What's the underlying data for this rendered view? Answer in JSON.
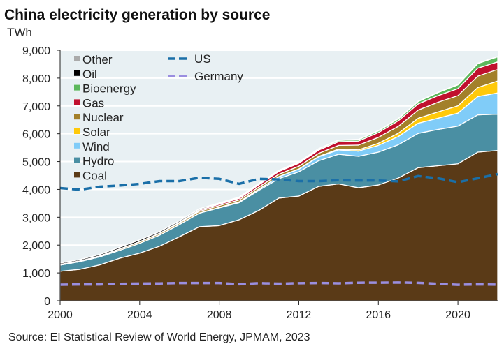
{
  "chart_data": {
    "type": "area",
    "title": "China electricity generation by source",
    "ylabel": "TWh",
    "xlabel": "",
    "source": "Source: EI Statistical Review of World Energy, JPMAM, 2023",
    "ylim": [
      0,
      9000
    ],
    "xlim": [
      2000,
      2022
    ],
    "yticks": [
      "0",
      "1,000",
      "2,000",
      "3,000",
      "4,000",
      "5,000",
      "6,000",
      "7,000",
      "8,000",
      "9,000"
    ],
    "xticks": [
      "2000",
      "2004",
      "2008",
      "2012",
      "2016",
      "2020"
    ],
    "x": [
      2000,
      2001,
      2002,
      2003,
      2004,
      2005,
      2006,
      2007,
      2008,
      2009,
      2010,
      2011,
      2012,
      2013,
      2014,
      2015,
      2016,
      2017,
      2018,
      2019,
      2020,
      2021,
      2022
    ],
    "series": [
      {
        "name": "Coal",
        "color": "#5a3a17",
        "values": [
          1060,
          1130,
          1290,
          1530,
          1710,
          1960,
          2300,
          2660,
          2700,
          2910,
          3250,
          3690,
          3760,
          4110,
          4200,
          4060,
          4160,
          4410,
          4780,
          4850,
          4920,
          5340,
          5400
        ]
      },
      {
        "name": "Hydro",
        "color": "#4a8fa3",
        "values": [
          222,
          277,
          288,
          283,
          353,
          397,
          436,
          485,
          637,
          616,
          722,
          699,
          872,
          920,
          1064,
          1130,
          1181,
          1194,
          1232,
          1304,
          1355,
          1340,
          1303
        ]
      },
      {
        "name": "Wind",
        "color": "#80ccf8",
        "values": [
          1,
          1,
          1,
          1,
          1,
          2,
          4,
          6,
          15,
          27,
          45,
          70,
          96,
          141,
          156,
          186,
          241,
          295,
          366,
          406,
          467,
          656,
          763
        ]
      },
      {
        "name": "Solar",
        "color": "#ffc90a",
        "values": [
          0,
          0,
          0,
          0,
          0,
          0,
          0,
          0,
          0,
          0,
          1,
          3,
          6,
          15,
          29,
          45,
          75,
          118,
          177,
          225,
          261,
          327,
          428
        ]
      },
      {
        "name": "Nuclear",
        "color": "#a3802a",
        "values": [
          17,
          17,
          25,
          43,
          50,
          53,
          55,
          62,
          68,
          70,
          74,
          86,
          98,
          112,
          133,
          171,
          213,
          248,
          295,
          348,
          366,
          408,
          418
        ]
      },
      {
        "name": "Gas",
        "color": "#c0102e",
        "values": [
          6,
          7,
          9,
          9,
          10,
          12,
          20,
          40,
          48,
          55,
          80,
          100,
          110,
          115,
          133,
          145,
          170,
          200,
          220,
          236,
          252,
          287,
          272
        ]
      },
      {
        "name": "Bioenergy",
        "color": "#5cb85c",
        "values": [
          2,
          2,
          2,
          2,
          2,
          4,
          8,
          10,
          12,
          15,
          25,
          30,
          35,
          40,
          45,
          50,
          60,
          70,
          85,
          110,
          136,
          165,
          180
        ]
      },
      {
        "name": "Oil",
        "color": "#000000",
        "values": [
          46,
          47,
          50,
          55,
          60,
          55,
          50,
          40,
          30,
          30,
          20,
          10,
          10,
          10,
          10,
          10,
          10,
          10,
          10,
          10,
          10,
          10,
          10
        ]
      },
      {
        "name": "Other",
        "color": "#aaaaaa",
        "values": [
          2,
          2,
          2,
          2,
          2,
          2,
          2,
          2,
          2,
          2,
          2,
          2,
          2,
          2,
          2,
          2,
          2,
          2,
          2,
          2,
          2,
          2,
          2
        ]
      }
    ],
    "lines": [
      {
        "name": "US",
        "color": "#1a6fa8",
        "values": [
          4050,
          3990,
          4100,
          4140,
          4200,
          4300,
          4300,
          4420,
          4380,
          4200,
          4380,
          4360,
          4300,
          4300,
          4330,
          4320,
          4320,
          4290,
          4480,
          4400,
          4260,
          4400,
          4550
        ]
      },
      {
        "name": "Germany",
        "color": "#9a8ee0",
        "values": [
          577,
          586,
          587,
          609,
          617,
          622,
          637,
          637,
          637,
          593,
          633,
          613,
          630,
          638,
          627,
          647,
          649,
          654,
          643,
          609,
          574,
          588,
          577
        ]
      }
    ],
    "legend_order": [
      "Other",
      "Oil",
      "Bioenergy",
      "Gas",
      "Nuclear",
      "Solar",
      "Wind",
      "Hydro",
      "Coal"
    ],
    "legend_placement": "top-left",
    "grid": true
  }
}
